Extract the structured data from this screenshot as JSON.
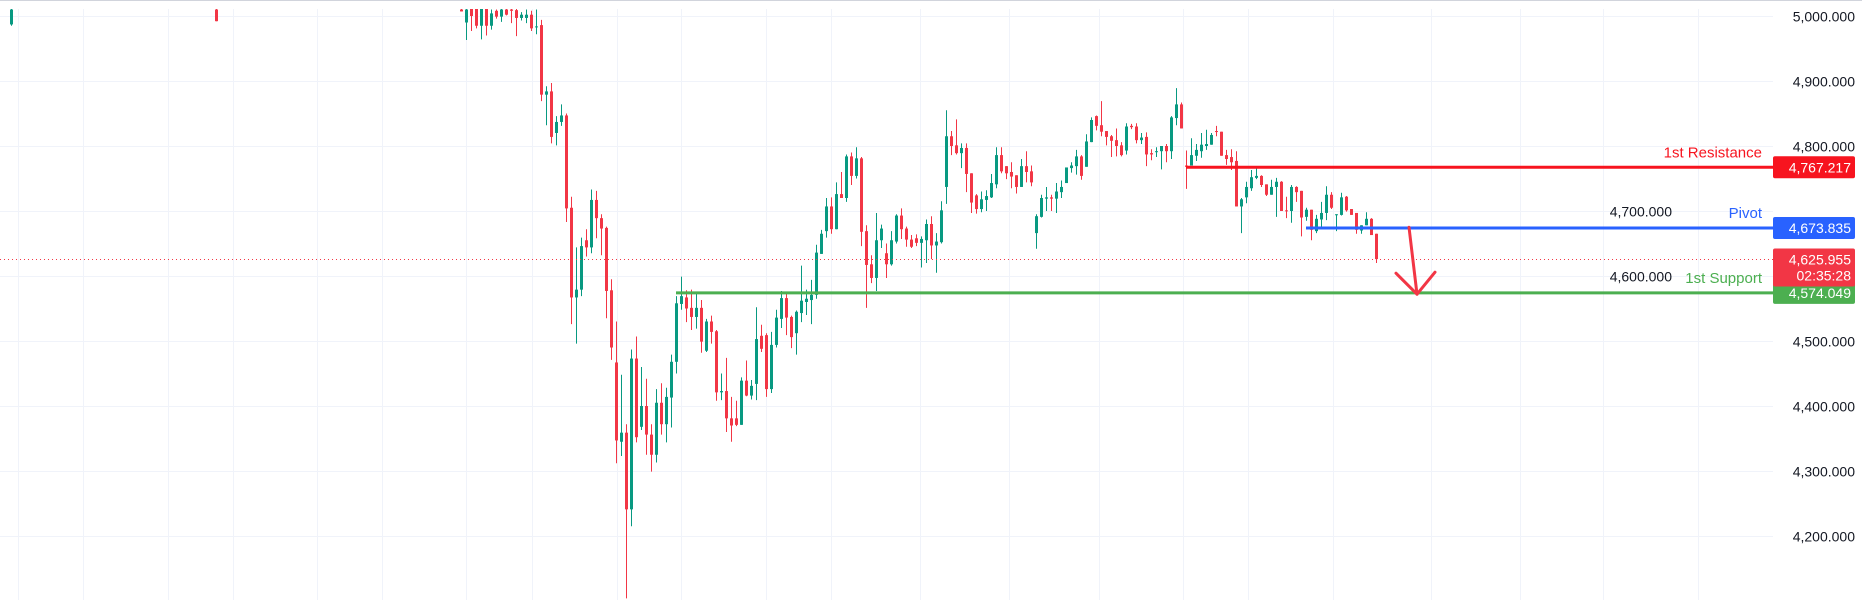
{
  "chart_data": {
    "type": "candlestick",
    "title": "",
    "ylim": [
      4101,
      5025
    ],
    "y_ticks": [
      5000,
      4900,
      4800,
      4700,
      4600,
      4500,
      4400,
      4300,
      4200
    ],
    "y_tick_labels": [
      "5,000.000",
      "4,900.000",
      "4,800.000",
      "4,700.000",
      "4,600.000",
      "4,500.000",
      "4,400.000",
      "4,300.000",
      "4,200.000"
    ],
    "grid": true,
    "colors": {
      "up": "#089981",
      "down": "#f23645",
      "grid": "#f0f3fa"
    },
    "early_candles": [
      {
        "t": -90,
        "ohlc": [
          4987,
          5012,
          4985,
          5010
        ]
      },
      {
        "t": -49,
        "ohlc": [
          5010,
          5012,
          4992,
          4992
        ]
      }
    ],
    "candles": [
      [
        5010,
        5011,
        5007,
        5007
      ],
      [
        4990,
        5015,
        4963,
        5010
      ],
      [
        5015,
        5020,
        4977,
        5000
      ],
      [
        5012,
        5018,
        4981,
        4985
      ],
      [
        4985,
        5020,
        4964,
        5012
      ],
      [
        5012,
        5018,
        4970,
        4985
      ],
      [
        4985,
        5010,
        4979,
        5004
      ],
      [
        5008,
        5010,
        4996,
        4999
      ],
      [
        4999,
        5012,
        4991,
        5010
      ],
      [
        5010,
        5014,
        5001,
        5002
      ],
      [
        5010,
        5012,
        4989,
        5008
      ],
      [
        5009,
        5011,
        4969,
        4997
      ],
      [
        4997,
        5006,
        4993,
        5002
      ],
      [
        4997,
        5010,
        4989,
        5002
      ],
      [
        5002,
        5008,
        4977,
        4981
      ],
      [
        4983,
        5010,
        4972,
        4984
      ],
      [
        4986,
        4994,
        4869,
        4879
      ],
      [
        4879,
        4892,
        4832,
        4884
      ],
      [
        4884,
        4897,
        4804,
        4814
      ],
      [
        4820,
        4846,
        4801,
        4837
      ],
      [
        4837,
        4864,
        4831,
        4847
      ],
      [
        4847,
        4850,
        4683,
        4704
      ],
      [
        4705,
        4722,
        4526,
        4567
      ],
      [
        4567,
        4644,
        4496,
        4579
      ],
      [
        4579,
        4659,
        4569,
        4646
      ],
      [
        4655,
        4672,
        4630,
        4644
      ],
      [
        4644,
        4733,
        4635,
        4717
      ],
      [
        4717,
        4731,
        4658,
        4689
      ],
      [
        4689,
        4695,
        4632,
        4673
      ],
      [
        4674,
        4676,
        4535,
        4577
      ],
      [
        4578,
        4595,
        4471,
        4490
      ],
      [
        4467,
        4530,
        4312,
        4347
      ],
      [
        4345,
        4448,
        4323,
        4359
      ],
      [
        4359,
        4372,
        4104,
        4241
      ],
      [
        4241,
        4487,
        4215,
        4473
      ],
      [
        4473,
        4507,
        4344,
        4352
      ],
      [
        4368,
        4460,
        4363,
        4400
      ],
      [
        4400,
        4442,
        4325,
        4356
      ],
      [
        4356,
        4372,
        4299,
        4325
      ],
      [
        4325,
        4426,
        4313,
        4405
      ],
      [
        4405,
        4435,
        4356,
        4372
      ],
      [
        4372,
        4428,
        4344,
        4414
      ],
      [
        4413,
        4479,
        4367,
        4468
      ],
      [
        4468,
        4569,
        4450,
        4558
      ],
      [
        4557,
        4599,
        4548,
        4569
      ],
      [
        4567,
        4578,
        4529,
        4550
      ],
      [
        4551,
        4579,
        4517,
        4537
      ],
      [
        4537,
        4573,
        4519,
        4551
      ],
      [
        4551,
        4563,
        4482,
        4499
      ],
      [
        4485,
        4534,
        4483,
        4530
      ],
      [
        4530,
        4539,
        4496,
        4514
      ],
      [
        4515,
        4517,
        4408,
        4421
      ],
      [
        4421,
        4450,
        4409,
        4423
      ],
      [
        4423,
        4474,
        4360,
        4381
      ],
      [
        4381,
        4414,
        4345,
        4370
      ],
      [
        4381,
        4408,
        4369,
        4371
      ],
      [
        4371,
        4444,
        4371,
        4439
      ],
      [
        4439,
        4470,
        4415,
        4416
      ],
      [
        4416,
        4440,
        4410,
        4431
      ],
      [
        4434,
        4552,
        4409,
        4503
      ],
      [
        4508,
        4525,
        4483,
        4488
      ],
      [
        4509,
        4512,
        4414,
        4426
      ],
      [
        4426,
        4514,
        4420,
        4494
      ],
      [
        4494,
        4548,
        4490,
        4536
      ],
      [
        4534,
        4577,
        4520,
        4566
      ],
      [
        4566,
        4576,
        4509,
        4536
      ],
      [
        4537,
        4539,
        4489,
        4506
      ],
      [
        4512,
        4547,
        4479,
        4545
      ],
      [
        4543,
        4616,
        4529,
        4562
      ],
      [
        4560,
        4579,
        4540,
        4565
      ],
      [
        4563,
        4594,
        4526,
        4571
      ],
      [
        4571,
        4648,
        4565,
        4636
      ],
      [
        4634,
        4671,
        4634,
        4665
      ],
      [
        4669,
        4720,
        4659,
        4707
      ],
      [
        4707,
        4721,
        4665,
        4672
      ],
      [
        4672,
        4744,
        4672,
        4726
      ],
      [
        4726,
        4760,
        4720,
        4720
      ],
      [
        4720,
        4787,
        4714,
        4784
      ],
      [
        4784,
        4790,
        4740,
        4754
      ],
      [
        4754,
        4798,
        4750,
        4781
      ],
      [
        4781,
        4783,
        4646,
        4668
      ],
      [
        4669,
        4678,
        4551,
        4617
      ],
      [
        4618,
        4632,
        4589,
        4597
      ],
      [
        4597,
        4697,
        4577,
        4655
      ],
      [
        4655,
        4679,
        4643,
        4673
      ],
      [
        4635,
        4650,
        4597,
        4618
      ],
      [
        4618,
        4669,
        4616,
        4655
      ],
      [
        4653,
        4695,
        4650,
        4693
      ],
      [
        4693,
        4704,
        4657,
        4672
      ],
      [
        4673,
        4676,
        4645,
        4656
      ],
      [
        4656,
        4663,
        4643,
        4645
      ],
      [
        4658,
        4664,
        4646,
        4651
      ],
      [
        4651,
        4661,
        4613,
        4657
      ],
      [
        4655,
        4687,
        4620,
        4680
      ],
      [
        4680,
        4692,
        4626,
        4647
      ],
      [
        4647,
        4666,
        4605,
        4653
      ],
      [
        4652,
        4715,
        4650,
        4701
      ],
      [
        4737,
        4855,
        4711,
        4815
      ],
      [
        4815,
        4823,
        4786,
        4800
      ],
      [
        4801,
        4841,
        4787,
        4789
      ],
      [
        4789,
        4804,
        4766,
        4797
      ],
      [
        4797,
        4804,
        4729,
        4757
      ],
      [
        4758,
        4758,
        4697,
        4713
      ],
      [
        4724,
        4726,
        4696,
        4703
      ],
      [
        4703,
        4730,
        4698,
        4718
      ],
      [
        4717,
        4732,
        4700,
        4723
      ],
      [
        4721,
        4757,
        4720,
        4743
      ],
      [
        4741,
        4798,
        4735,
        4786
      ],
      [
        4786,
        4798,
        4758,
        4761
      ],
      [
        4769,
        4769,
        4749,
        4758
      ],
      [
        4760,
        4775,
        4735,
        4753
      ],
      [
        4755,
        4755,
        4727,
        4737
      ],
      [
        4737,
        4780,
        4737,
        4769
      ],
      [
        4769,
        4792,
        4744,
        4760
      ],
      [
        4761,
        4770,
        4738,
        4744
      ],
      [
        4666,
        4695,
        4642,
        4692
      ],
      [
        4691,
        4725,
        4690,
        4720
      ],
      [
        4719,
        4737,
        4700,
        4721
      ],
      [
        4721,
        4725,
        4700,
        4719
      ],
      [
        4719,
        4743,
        4697,
        4730
      ],
      [
        4729,
        4747,
        4720,
        4737
      ],
      [
        4743,
        4767,
        4743,
        4767
      ],
      [
        4766,
        4775,
        4759,
        4770
      ],
      [
        4769,
        4794,
        4756,
        4784
      ],
      [
        4784,
        4786,
        4748,
        4754
      ],
      [
        4768,
        4818,
        4768,
        4807
      ],
      [
        4806,
        4844,
        4806,
        4840
      ],
      [
        4846,
        4847,
        4824,
        4831
      ],
      [
        4832,
        4869,
        4815,
        4822
      ],
      [
        4823,
        4823,
        4801,
        4814
      ],
      [
        4815,
        4817,
        4783,
        4808
      ],
      [
        4809,
        4827,
        4784,
        4800
      ],
      [
        4801,
        4806,
        4784,
        4786
      ],
      [
        4793,
        4835,
        4787,
        4830
      ],
      [
        4831,
        4834,
        4826,
        4829
      ],
      [
        4830,
        4835,
        4804,
        4809
      ],
      [
        4809,
        4820,
        4803,
        4813
      ],
      [
        4814,
        4821,
        4769,
        4787
      ],
      [
        4789,
        4795,
        4778,
        4787
      ],
      [
        4791,
        4798,
        4783,
        4792
      ],
      [
        4792,
        4800,
        4764,
        4800
      ],
      [
        4800,
        4803,
        4775,
        4792
      ],
      [
        4792,
        4846,
        4780,
        4844
      ],
      [
        4843,
        4889,
        4832,
        4864
      ],
      [
        4864,
        4867,
        4827,
        4827
      ],
      [
        4770,
        4793,
        4734,
        4768
      ],
      [
        4770,
        4812,
        4770,
        4786
      ],
      [
        4785,
        4803,
        4777,
        4794
      ],
      [
        4792,
        4820,
        4782,
        4802
      ],
      [
        4800,
        4825,
        4794,
        4803
      ],
      [
        4802,
        4820,
        4802,
        4817
      ],
      [
        4823,
        4831,
        4815,
        4822
      ],
      [
        4822,
        4822,
        4785,
        4785
      ],
      [
        4786,
        4794,
        4771,
        4780
      ],
      [
        4783,
        4795,
        4763,
        4775
      ],
      [
        4777,
        4792,
        4707,
        4707
      ],
      [
        4707,
        4720,
        4666,
        4718
      ],
      [
        4721,
        4745,
        4712,
        4737
      ],
      [
        4735,
        4763,
        4731,
        4752
      ],
      [
        4751,
        4769,
        4749,
        4754
      ],
      [
        4754,
        4755,
        4737,
        4740
      ],
      [
        4741,
        4741,
        4723,
        4725
      ],
      [
        4725,
        4748,
        4725,
        4737
      ],
      [
        4737,
        4751,
        4691,
        4745
      ],
      [
        4745,
        4746,
        4700,
        4700
      ],
      [
        4701,
        4722,
        4689,
        4700
      ],
      [
        4700,
        4740,
        4682,
        4737
      ],
      [
        4737,
        4738,
        4714,
        4729
      ],
      [
        4731,
        4731,
        4661,
        4690
      ],
      [
        4691,
        4705,
        4685,
        4702
      ],
      [
        4702,
        4702,
        4655,
        4671
      ],
      [
        4669,
        4694,
        4666,
        4688
      ],
      [
        4687,
        4714,
        4672,
        4697
      ],
      [
        4697,
        4738,
        4686,
        4725
      ],
      [
        4725,
        4729,
        4703,
        4705
      ],
      [
        4694,
        4695,
        4669,
        4695
      ],
      [
        4694,
        4728,
        4693,
        4721
      ],
      [
        4722,
        4723,
        4699,
        4701
      ],
      [
        4703,
        4703,
        4694,
        4694
      ],
      [
        4697,
        4697,
        4665,
        4671
      ],
      [
        4670,
        4678,
        4665,
        4678
      ],
      [
        4678,
        4698,
        4678,
        4688
      ],
      [
        4688,
        4689,
        4663,
        4663
      ],
      [
        4665,
        4665,
        4620,
        4626
      ]
    ],
    "levels": [
      {
        "name": "resistance",
        "label": "1st Resistance",
        "price": 4767.217,
        "price_label": "4,767.217",
        "color": "#f7141f",
        "from_t": 145
      },
      {
        "name": "pivot",
        "label": "Pivot",
        "price": 4673.835,
        "price_label": "4,673.835",
        "color": "#2962ff",
        "from_t": 169
      },
      {
        "name": "support",
        "label": "1st Support",
        "price": 4574.049,
        "price_label": "4,574.049",
        "color": "#4caf50",
        "from_t": 43
      }
    ],
    "last_price": {
      "price": 4625.955,
      "price_label": "4,625.955",
      "countdown": "02:35:28",
      "color": "#f23645"
    },
    "annotation_arrow": {
      "from_t": 190,
      "from_price": 4675,
      "to_t": 191,
      "to_price": 4572,
      "color": "#f23645"
    }
  }
}
